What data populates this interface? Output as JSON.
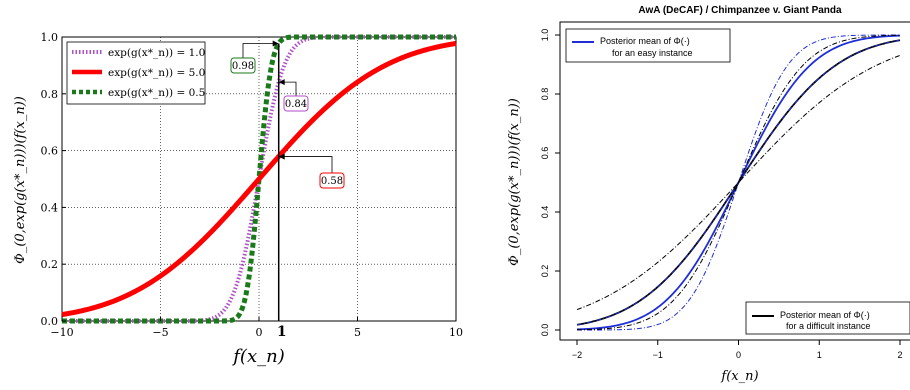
{
  "chart_data": [
    {
      "type": "line",
      "title": "",
      "xlabel": "f(x_n)",
      "ylabel": "Φ_(0,exp(g(x*_n)))(f(x_n))",
      "xlim": [
        -10,
        10
      ],
      "ylim": [
        0,
        1
      ],
      "xticks": [
        "−10",
        "−5",
        "0",
        "1",
        "5",
        "10"
      ],
      "yticks": [
        "0.0",
        "0.2",
        "0.4",
        "0.6",
        "0.8",
        "1.0"
      ],
      "grid": true,
      "legend_position": "top-left",
      "series": [
        {
          "name": "exp(g(x*_n)) = 1.0",
          "color": "#b04fc7",
          "style": "dotted",
          "sd": 1.0,
          "x": [
            -10,
            -4,
            -3,
            -2,
            -1,
            0,
            1,
            2,
            3,
            4,
            10
          ],
          "y": [
            0.0,
            0.0,
            0.001,
            0.023,
            0.159,
            0.5,
            0.841,
            0.977,
            0.999,
            1.0,
            1.0
          ]
        },
        {
          "name": "exp(g(x*_n)) = 5.0",
          "color": "#ff0000",
          "style": "solid",
          "sd": 5.0,
          "x": [
            -10,
            -8,
            -6,
            -4,
            -2,
            0,
            1,
            2,
            4,
            6,
            8,
            10
          ],
          "y": [
            0.023,
            0.055,
            0.115,
            0.212,
            0.345,
            0.5,
            0.579,
            0.655,
            0.788,
            0.885,
            0.945,
            0.977
          ]
        },
        {
          "name": "exp(g(x*_n)) = 0.5",
          "color": "#1a7a1a",
          "style": "dashed",
          "sd": 0.5,
          "x": [
            -10,
            -2,
            -1.5,
            -1,
            -0.5,
            0,
            0.5,
            1,
            1.5,
            2,
            10
          ],
          "y": [
            0.0,
            0.0,
            0.001,
            0.023,
            0.159,
            0.5,
            0.841,
            0.977,
            0.999,
            1.0,
            1.0
          ]
        }
      ],
      "vline_x": 1,
      "annotations": [
        {
          "text": "0.98",
          "x": 1,
          "y": 0.977,
          "color": "#1a7a1a"
        },
        {
          "text": "0.84",
          "x": 1,
          "y": 0.841,
          "color": "#b04fc7"
        },
        {
          "text": "0.58",
          "x": 1,
          "y": 0.579,
          "color": "#ff0000"
        }
      ]
    },
    {
      "type": "line",
      "title": "AwA (DeCAF) / Chimpanzee v. Giant Panda",
      "xlabel": "f(x_n)",
      "ylabel": "Φ_(0,exp(g(x*_n)))(f(x_n))",
      "xlim": [
        -2,
        2
      ],
      "ylim": [
        0,
        1
      ],
      "xticks": [
        "−2",
        "−1",
        "0",
        "1",
        "2"
      ],
      "yticks": [
        "0.0",
        "0.2",
        "0.4",
        "0.6",
        "0.8",
        "1.0"
      ],
      "grid": false,
      "series": [
        {
          "name": "Posterior mean of Φ(·) for an easy instance",
          "color": "#1f2fd6",
          "style": "solid",
          "sd": 0.7
        },
        {
          "name": "Posterior mean of Φ(·) for a difficult instance",
          "color": "#000000",
          "style": "solid",
          "sd": 0.95
        },
        {
          "name": "",
          "color": "#1f2fd6",
          "style": "dashdot",
          "sd": 0.48
        },
        {
          "name": "",
          "color": "#1f2fd6",
          "style": "dashdot",
          "sd": 0.95
        },
        {
          "name": "",
          "color": "#000000",
          "style": "dashdot",
          "sd": 0.63
        },
        {
          "name": "",
          "color": "#000000",
          "style": "dashdot",
          "sd": 1.35
        }
      ],
      "legend": {
        "easy_line1": "Posterior mean of  Φ(·)",
        "easy_line2": "for an easy instance",
        "difficult_line1": "Posterior mean of   Φ(·)",
        "difficult_line2": "for a difficult instance"
      }
    }
  ]
}
